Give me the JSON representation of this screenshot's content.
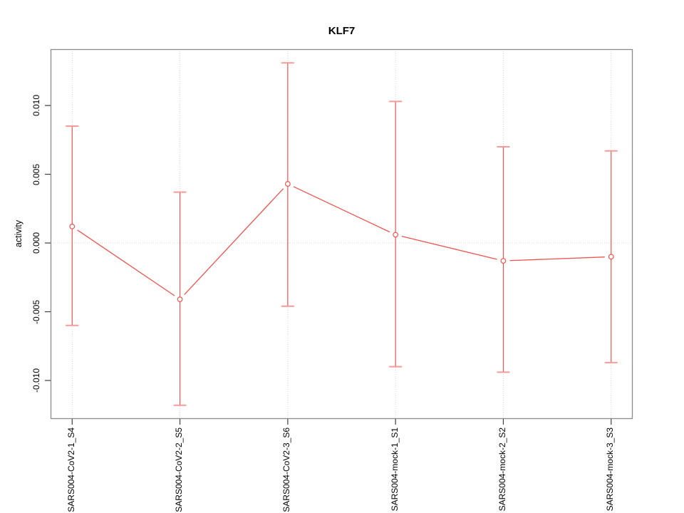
{
  "figure": {
    "background": "#ffffff"
  },
  "chart_data": {
    "type": "line",
    "subtype": "means-with-error-bars",
    "title": "KLF7",
    "xlabel": "",
    "ylabel": "activity",
    "categories": [
      "SARS004-CoV2-1_S4",
      "SARS004-CoV2-2_S5",
      "SARS004-CoV2-3_S6",
      "SARS004-mock-1_S1",
      "SARS004-mock-2_S2",
      "SARS004-mock-3_S3"
    ],
    "series": [
      {
        "name": "KLF7 activity",
        "means": [
          0.0012,
          -0.0041,
          0.0043,
          0.0006,
          -0.0013,
          -0.001
        ],
        "upper": [
          0.0085,
          0.0037,
          0.0131,
          0.0103,
          0.007,
          0.0067
        ],
        "lower": [
          -0.006,
          -0.0118,
          -0.0046,
          -0.009,
          -0.0094,
          -0.0087
        ]
      }
    ],
    "y_tick_labels": [
      "-0.010",
      "-0.005",
      "0.000",
      "0.005",
      "0.010"
    ],
    "y_tick_values": [
      -0.01,
      -0.005,
      0.0,
      0.005,
      0.01
    ],
    "ylim": [
      -0.0128,
      0.0141
    ],
    "xlim": [
      0.8,
      6.2
    ],
    "x_positions": [
      1,
      2,
      3,
      4,
      5,
      6
    ],
    "grid": {
      "vertical": "dotted line at each category",
      "horizontal": "dotted line at y = 0 only"
    },
    "legend": "none",
    "marker": "open-circle",
    "colors": {
      "series": "#ef5350",
      "cap": "#f59b99",
      "grid": "#d4d4d4",
      "box": "#8a8a8a",
      "tick": "#3f3f3f",
      "text": "#000000"
    }
  }
}
